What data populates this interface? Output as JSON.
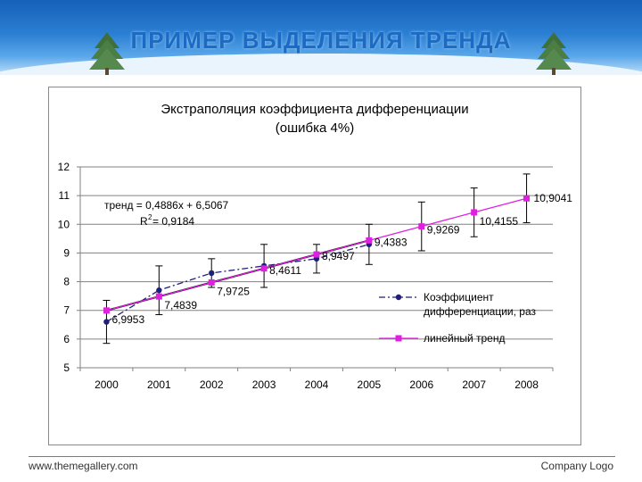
{
  "slide": {
    "title": "ПРИМЕР ВЫДЕЛЕНИЯ ТРЕНДА"
  },
  "footer": {
    "left": "www.themegallery.com",
    "right": "Company Logo"
  },
  "chart_data": {
    "type": "line",
    "title": "Экстраполяция коэффициента дифференциации",
    "subtitle": "(ошибка 4%)",
    "xlabel": "",
    "ylabel": "",
    "categories": [
      "2000",
      "2001",
      "2002",
      "2003",
      "2004",
      "2005",
      "2006",
      "2007",
      "2008"
    ],
    "ylim": [
      5,
      12
    ],
    "yticks": [
      5,
      6,
      7,
      8,
      9,
      10,
      11,
      12
    ],
    "grid": true,
    "legend_position": "bottom-right",
    "trend_equation": "тренд = 0,4886x + 6,5067",
    "r_squared_prefix": "R",
    "r_squared_exp": "2",
    "r_squared_value": " = 0,9184",
    "series": [
      {
        "name": "Коэффициент дифференциации, раз",
        "legend_lines": [
          "Коэффициент",
          "дифференциации, раз"
        ],
        "color": "#1f1f7a",
        "style": "dash-dot",
        "marker": "circle",
        "x": [
          "2000",
          "2001",
          "2002",
          "2003",
          "2004",
          "2005"
        ],
        "values": [
          6.6,
          7.7,
          8.3,
          8.55,
          8.8,
          9.3
        ],
        "error": [
          0.75,
          0.85,
          0.5,
          0.75,
          0.5,
          0.7
        ]
      },
      {
        "name": "линейный тренд",
        "legend_lines": [
          "линейный тренд"
        ],
        "color": "#e020e0",
        "style": "solid",
        "marker": "square",
        "x": [
          "2000",
          "2001",
          "2002",
          "2003",
          "2004",
          "2005",
          "2006",
          "2007",
          "2008"
        ],
        "values": [
          6.9953,
          7.4839,
          7.9725,
          8.4611,
          8.9497,
          9.4383,
          9.9269,
          10.4155,
          10.9041
        ],
        "error": [
          null,
          null,
          null,
          null,
          null,
          null,
          0.85,
          0.85,
          0.85
        ]
      }
    ],
    "data_labels": [
      "6,9953",
      "7,4839",
      "7,9725",
      "8,4611",
      "8,9497",
      "9,4383",
      "9,9269",
      "10,4155",
      "10,9041"
    ],
    "colors": {
      "axis": "#808080",
      "grid": "#808080",
      "black_trend": "#000000"
    }
  }
}
